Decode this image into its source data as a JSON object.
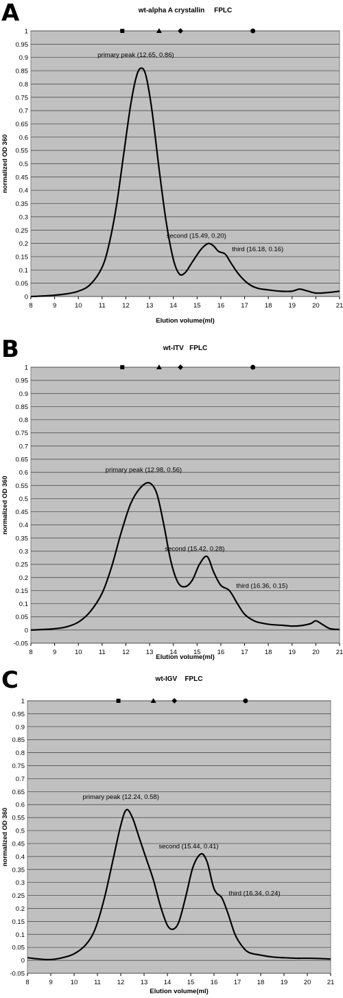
{
  "chart_data": [
    {
      "type": "line",
      "panel_letter": "A",
      "title": "wt-alpha A crystallin     FPLC",
      "xlabel": "Elution volume(ml)",
      "ylabel": "normalized OD 360",
      "xlim": [
        8,
        21
      ],
      "ylim": [
        0,
        1
      ],
      "x_ticks": [
        8,
        9,
        10,
        11,
        12,
        13,
        14,
        15,
        16,
        17,
        18,
        19,
        20,
        21
      ],
      "y_ticks": [
        0,
        0.05,
        0.1,
        0.15,
        0.2,
        0.25,
        0.3,
        0.35,
        0.4,
        0.45,
        0.5,
        0.55,
        0.6,
        0.65,
        0.7,
        0.75,
        0.8,
        0.85,
        0.9,
        0.95,
        1
      ],
      "grid": true,
      "markers": [
        {
          "shape": "square",
          "x": 11.85,
          "y": 1
        },
        {
          "shape": "triangle",
          "x": 13.4,
          "y": 1
        },
        {
          "shape": "diamond",
          "x": 14.3,
          "y": 1
        },
        {
          "shape": "circle",
          "x": 17.35,
          "y": 1
        }
      ],
      "annotations": [
        {
          "text": "primary peak (12.65, 0.86)",
          "x": 12.65,
          "y": 0.86
        },
        {
          "text": "second (15.49, 0.20)",
          "x": 15.49,
          "y": 0.2
        },
        {
          "text": "third (16.18, 0.16)",
          "x": 16.18,
          "y": 0.16
        }
      ],
      "series": [
        {
          "x": [
            8,
            8.5,
            9,
            9.5,
            10,
            10.5,
            11,
            11.3,
            11.6,
            11.9,
            12.2,
            12.45,
            12.65,
            12.85,
            13.1,
            13.4,
            13.7,
            14,
            14.25,
            14.5,
            14.8,
            15.1,
            15.3,
            15.49,
            15.7,
            15.9,
            16.18,
            16.4,
            16.7,
            17,
            17.3,
            17.6,
            18,
            18.5,
            19,
            19.3,
            19.6,
            20,
            20.5,
            21
          ],
          "y": [
            0,
            0.002,
            0.005,
            0.01,
            0.02,
            0.045,
            0.11,
            0.2,
            0.34,
            0.53,
            0.72,
            0.83,
            0.86,
            0.83,
            0.7,
            0.48,
            0.28,
            0.14,
            0.085,
            0.09,
            0.13,
            0.17,
            0.19,
            0.2,
            0.19,
            0.17,
            0.16,
            0.13,
            0.09,
            0.06,
            0.04,
            0.03,
            0.025,
            0.02,
            0.02,
            0.028,
            0.022,
            0.013,
            0.015,
            0.02
          ]
        }
      ]
    },
    {
      "type": "line",
      "panel_letter": "B",
      "title": "wt-ITV   FPLC",
      "xlabel": "Elution volume(ml)",
      "ylabel": "normalized OD 360",
      "xlim": [
        8,
        21
      ],
      "ylim": [
        -0.05,
        1
      ],
      "x_ticks": [
        8,
        9,
        10,
        11,
        12,
        13,
        14,
        15,
        16,
        17,
        18,
        19,
        20,
        21
      ],
      "y_ticks": [
        -0.05,
        0,
        0.05,
        0.1,
        0.15,
        0.2,
        0.25,
        0.3,
        0.35,
        0.4,
        0.45,
        0.5,
        0.55,
        0.6,
        0.65,
        0.7,
        0.75,
        0.8,
        0.85,
        0.9,
        0.95,
        1
      ],
      "grid": true,
      "markers": [
        {
          "shape": "square",
          "x": 11.85,
          "y": 1
        },
        {
          "shape": "triangle",
          "x": 13.4,
          "y": 1
        },
        {
          "shape": "diamond",
          "x": 14.3,
          "y": 1
        },
        {
          "shape": "circle",
          "x": 17.35,
          "y": 1
        }
      ],
      "annotations": [
        {
          "text": "primary peak (12.98, 0.56)",
          "x": 12.98,
          "y": 0.56
        },
        {
          "text": "second (15.42, 0.28)",
          "x": 15.42,
          "y": 0.28
        },
        {
          "text": "third (16.36, 0.15)",
          "x": 16.36,
          "y": 0.15
        }
      ],
      "series": [
        {
          "x": [
            8,
            8.5,
            9,
            9.5,
            10,
            10.5,
            11,
            11.4,
            11.8,
            12.2,
            12.6,
            12.98,
            13.3,
            13.6,
            13.9,
            14.2,
            14.5,
            14.8,
            15.1,
            15.42,
            15.7,
            16,
            16.36,
            16.7,
            17,
            17.4,
            17.8,
            18.2,
            18.6,
            19,
            19.4,
            19.8,
            20,
            20.3,
            20.6,
            21
          ],
          "y": [
            0,
            0.002,
            0.005,
            0.012,
            0.03,
            0.07,
            0.14,
            0.24,
            0.37,
            0.48,
            0.54,
            0.56,
            0.52,
            0.4,
            0.26,
            0.18,
            0.165,
            0.19,
            0.25,
            0.28,
            0.22,
            0.17,
            0.15,
            0.1,
            0.06,
            0.035,
            0.025,
            0.02,
            0.018,
            0.015,
            0.017,
            0.025,
            0.035,
            0.02,
            0.005,
            0.002
          ]
        }
      ]
    },
    {
      "type": "line",
      "panel_letter": "C",
      "title": "wt-IGV    FPLC",
      "xlabel": "Elution volume(ml)",
      "ylabel": "normalized OD 360",
      "xlim": [
        8,
        21
      ],
      "ylim": [
        -0.05,
        1
      ],
      "x_ticks": [
        8,
        9,
        10,
        11,
        12,
        13,
        14,
        15,
        16,
        17,
        18,
        19,
        20,
        21
      ],
      "y_ticks": [
        -0.05,
        0,
        0.05,
        0.1,
        0.15,
        0.2,
        0.25,
        0.3,
        0.35,
        0.4,
        0.45,
        0.5,
        0.55,
        0.6,
        0.65,
        0.7,
        0.75,
        0.8,
        0.85,
        0.9,
        0.95,
        1
      ],
      "grid": true,
      "markers": [
        {
          "shape": "square",
          "x": 11.9,
          "y": 1
        },
        {
          "shape": "triangle",
          "x": 13.4,
          "y": 1
        },
        {
          "shape": "diamond",
          "x": 14.3,
          "y": 1
        },
        {
          "shape": "circle",
          "x": 17.35,
          "y": 1
        }
      ],
      "annotations": [
        {
          "text": "primary peak (12.24, 0.58)",
          "x": 12.24,
          "y": 0.58
        },
        {
          "text": "second (15.44, 0.41)",
          "x": 15.44,
          "y": 0.41
        },
        {
          "text": "third (16.34, 0.24)",
          "x": 16.34,
          "y": 0.24
        }
      ],
      "series": [
        {
          "x": [
            8,
            8.5,
            9,
            9.5,
            10,
            10.5,
            10.9,
            11.3,
            11.7,
            12,
            12.24,
            12.5,
            12.8,
            13.1,
            13.4,
            13.7,
            14,
            14.25,
            14.5,
            14.8,
            15.1,
            15.44,
            15.7,
            15.95,
            16.1,
            16.34,
            16.6,
            16.9,
            17.2,
            17.5,
            18,
            18.5,
            19,
            19.5,
            20,
            20.5,
            21
          ],
          "y": [
            0.01,
            0.005,
            0.003,
            0.01,
            0.025,
            0.06,
            0.12,
            0.24,
            0.4,
            0.52,
            0.58,
            0.55,
            0.47,
            0.39,
            0.31,
            0.21,
            0.135,
            0.12,
            0.15,
            0.25,
            0.36,
            0.41,
            0.38,
            0.29,
            0.26,
            0.24,
            0.18,
            0.1,
            0.055,
            0.03,
            0.02,
            0.013,
            0.01,
            0.008,
            0.008,
            0.007,
            0.005
          ]
        }
      ]
    }
  ]
}
